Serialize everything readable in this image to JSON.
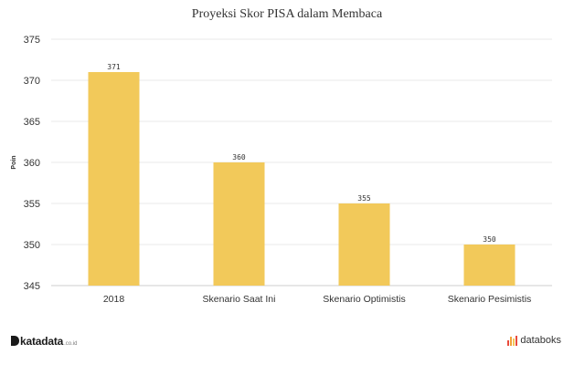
{
  "chart_data": {
    "type": "bar",
    "title": "Proyeksi Skor PISA dalam Membaca",
    "xlabel": "",
    "ylabel": "Poin",
    "categories": [
      "2018",
      "Skenario Saat Ini",
      "Skenario Optimistis",
      "Skenario Pesimistis"
    ],
    "values": [
      371,
      360,
      355,
      350
    ],
    "data_labels": [
      "371",
      "360",
      "355",
      "350"
    ],
    "ylim": [
      345,
      375
    ],
    "yticks": [
      345,
      350,
      355,
      360,
      365,
      370,
      375
    ],
    "grid": true,
    "legend": "none",
    "bar_color": "#f2c95a"
  },
  "footer": {
    "left_logo": {
      "word": "katadata",
      "suffix": ".co.id"
    },
    "right_logo": {
      "word": "databoks"
    }
  },
  "colors": {
    "bar": "#f2c95a",
    "grid": "#e9e9e9",
    "axis": "#cccccc",
    "databoks_icon": [
      "#e94b3c",
      "#f2a33a",
      "#f2c95a",
      "#e94b3c"
    ]
  }
}
